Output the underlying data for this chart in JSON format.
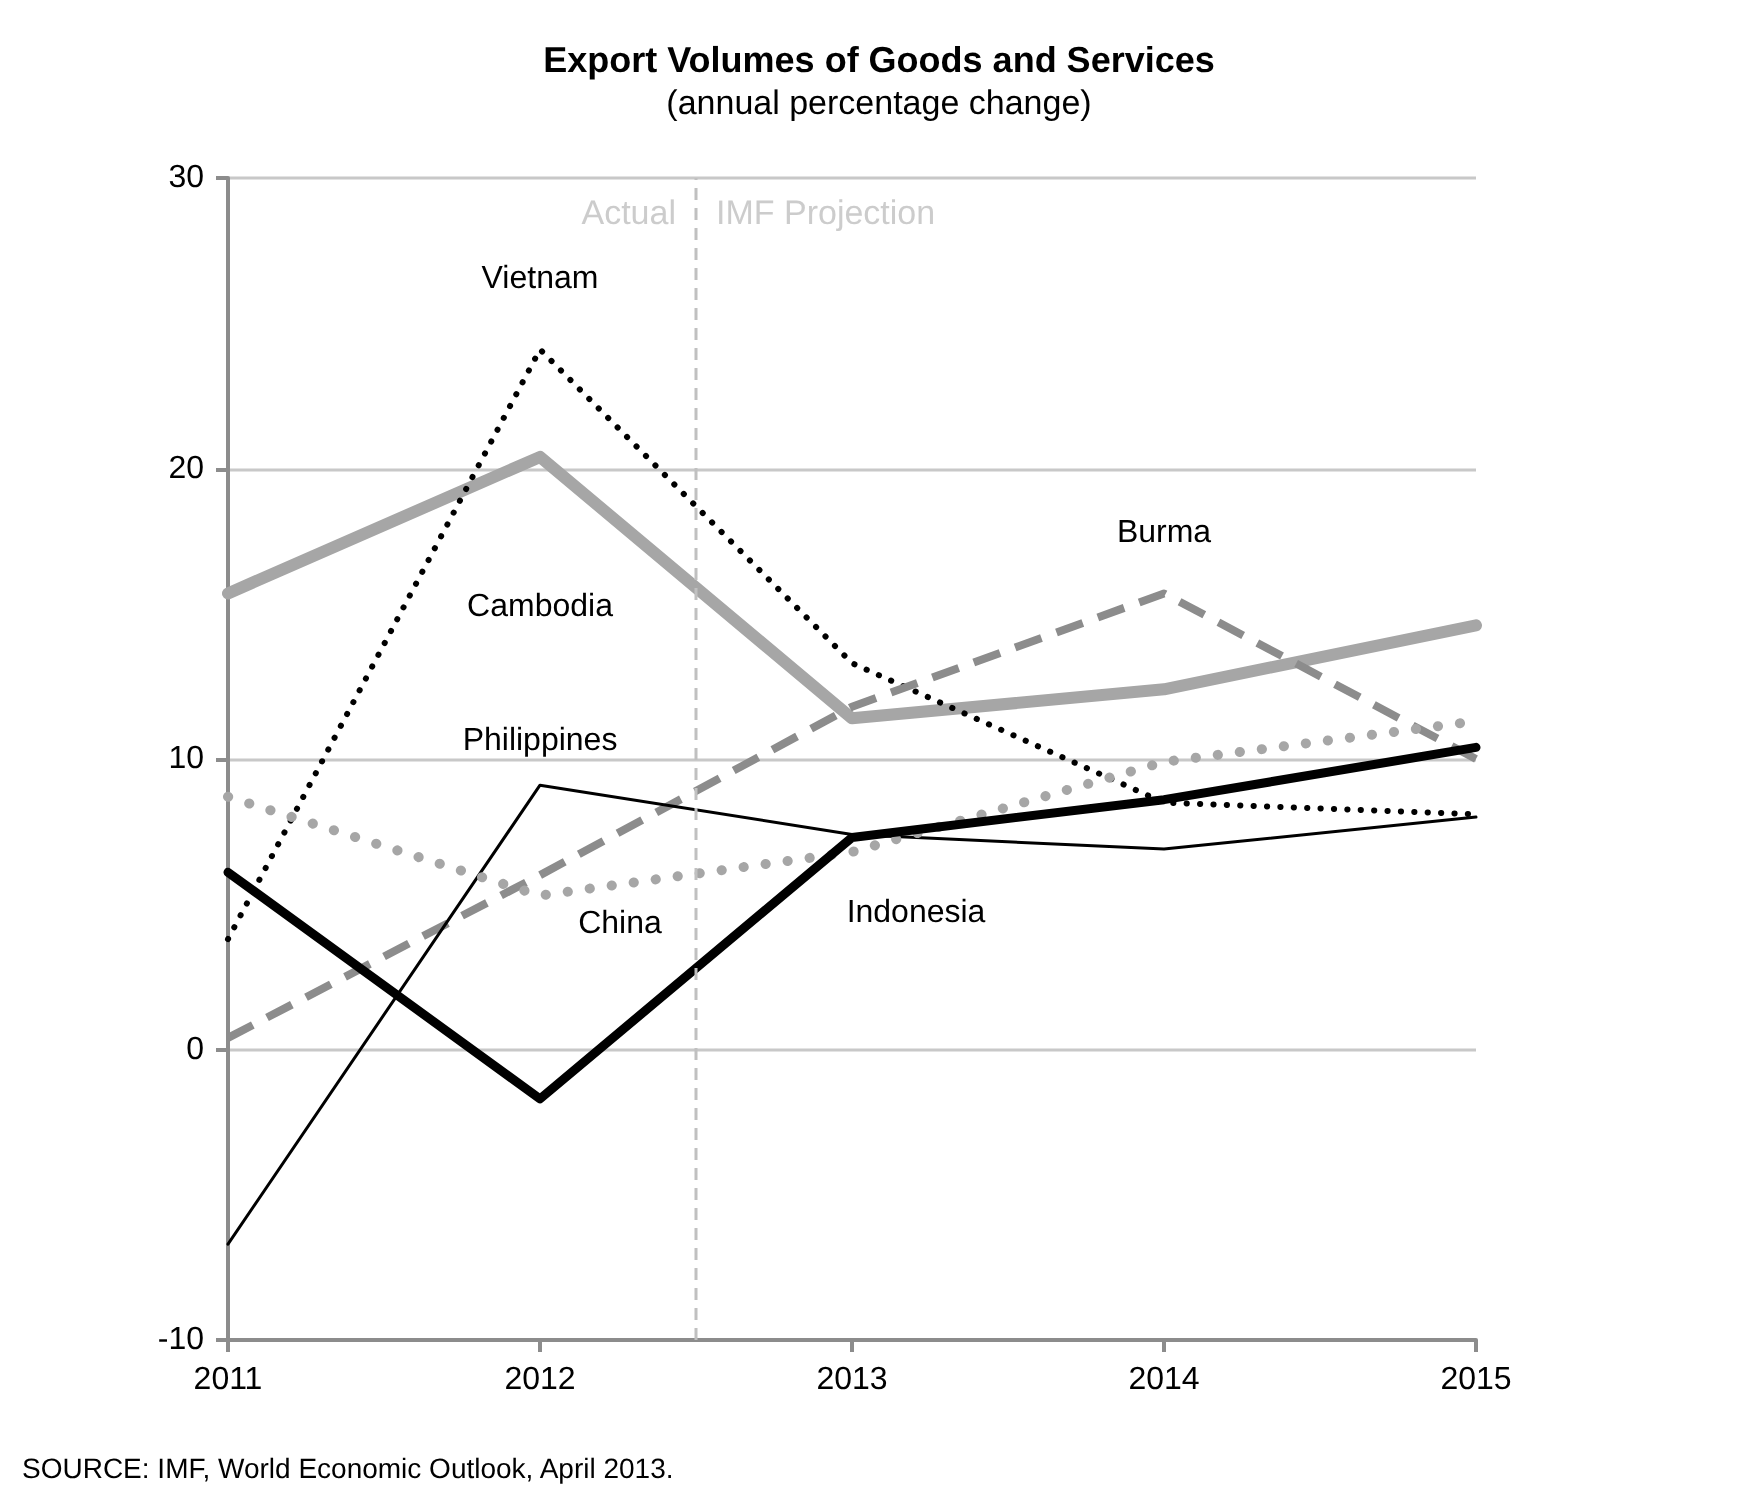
{
  "chart_data": {
    "type": "line",
    "title": "Export Volumes of Goods and Services",
    "subtitle": "(annual percentage change)",
    "x": [
      2011,
      2012,
      2013,
      2014,
      2015
    ],
    "series": [
      {
        "name": "Cambodia",
        "color": "#a6a6a6",
        "line_style": "solid",
        "values": [
          15.7,
          20.4,
          11.4,
          12.4,
          14.6
        ]
      },
      {
        "name": "Vietnam",
        "color": "#000000",
        "line_style": "dotted",
        "values": [
          3.8,
          24.1,
          13.3,
          8.5,
          8.1
        ]
      },
      {
        "name": "Burma",
        "color": "#8c8c8c",
        "line_style": "dashed",
        "values": [
          0.4,
          6.0,
          11.8,
          15.7,
          10.0
        ]
      },
      {
        "name": "Philippines",
        "color": "#000000",
        "line_style": "solid",
        "values": [
          -6.7,
          9.1,
          7.4,
          6.9,
          8.0
        ]
      },
      {
        "name": "China",
        "color": "#a6a6a6",
        "line_style": "dotted",
        "values": [
          8.7,
          5.3,
          6.8,
          9.9,
          11.3
        ]
      },
      {
        "name": "Indonesia",
        "color": "#000000",
        "line_style": "solid",
        "values": [
          6.1,
          -1.7,
          7.3,
          8.6,
          10.4
        ]
      }
    ],
    "xlim": [
      2011,
      2015
    ],
    "xticks": [
      2011,
      2012,
      2013,
      2014,
      2015
    ],
    "ylim": [
      -10,
      30
    ],
    "yticks": [
      -10,
      0,
      10,
      20,
      30
    ],
    "grid": "y",
    "legend": false,
    "marker": "none",
    "ref_lines": [
      {
        "axis": "x",
        "value": 2012.5,
        "color": "#c0c0c0",
        "line_style": "dashed"
      }
    ],
    "annotations": [
      {
        "text": "Actual",
        "x": 2012.5,
        "y": 28.8
      },
      {
        "text": "IMF Projection",
        "x": 2012.5,
        "y": 28.8
      },
      "SOURCE: IMF, World Economic Outlook, April 2013."
    ]
  }
}
